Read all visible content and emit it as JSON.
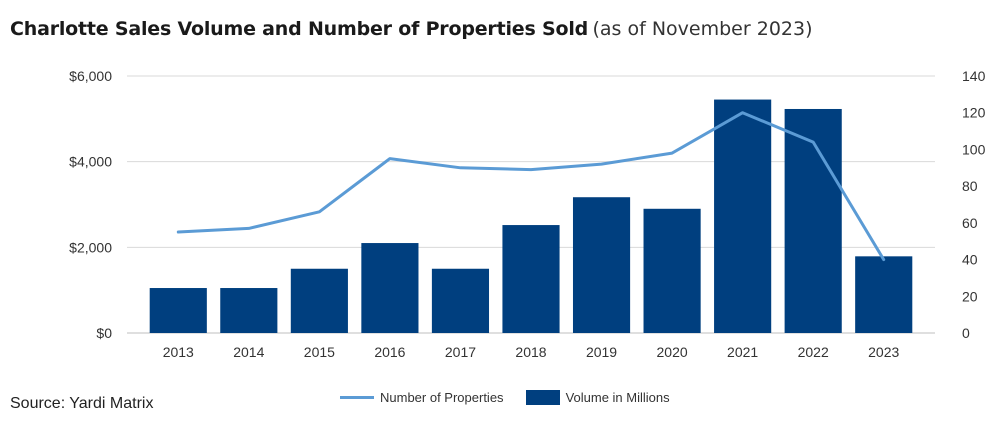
{
  "chart_data": {
    "type": "bar",
    "title": "Charlotte Sales Volume and Number of Properties Sold",
    "subtitle": "(as of November 2023)",
    "categories": [
      "2013",
      "2014",
      "2015",
      "2016",
      "2017",
      "2018",
      "2019",
      "2020",
      "2021",
      "2022",
      "2023"
    ],
    "series": [
      {
        "name": "Volume in Millions",
        "type": "bar",
        "axis": "left",
        "color": "#003f7f",
        "values": [
          1050,
          1050,
          1500,
          2100,
          1500,
          2520,
          3170,
          2900,
          5450,
          5230,
          1790
        ]
      },
      {
        "name": "Number of Properties",
        "type": "line",
        "axis": "right",
        "color": "#5b9bd5",
        "values": [
          55,
          57,
          66,
          95,
          90,
          89,
          92,
          98,
          120,
          104,
          40
        ]
      }
    ],
    "y_left": {
      "ylim": [
        0,
        6000
      ],
      "ticks": [
        "$0",
        "$2,000",
        "$4,000",
        "$6,000"
      ],
      "tick_values": [
        0,
        2000,
        4000,
        6000
      ]
    },
    "y_right": {
      "ylim": [
        0,
        140
      ],
      "ticks": [
        "0",
        "20",
        "40",
        "60",
        "80",
        "100",
        "120",
        "140"
      ],
      "tick_values": [
        0,
        20,
        40,
        60,
        80,
        100,
        120,
        140
      ]
    },
    "grid": true,
    "legend_position": "bottom"
  },
  "source": "Source: Yardi Matrix",
  "legend": {
    "line_label": "Number of Properties",
    "bar_label": "Volume in Millions"
  }
}
